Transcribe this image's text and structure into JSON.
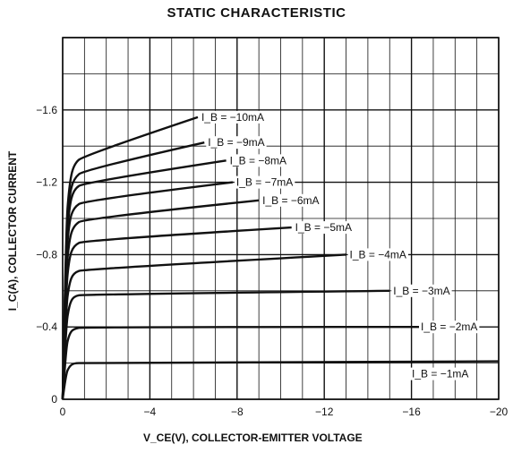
{
  "chart_data": {
    "type": "line",
    "title": "STATIC CHARACTERISTIC",
    "xlabel": "V_CE(V), COLLECTOR-EMITTER VOLTAGE",
    "ylabel": "I_C(A), COLLECTOR CURRENT",
    "xlim": [
      0,
      -20
    ],
    "ylim": [
      0,
      -2.0
    ],
    "x_ticks": [
      {
        "value": 0,
        "label": "0"
      },
      {
        "value": -4,
        "label": "−4"
      },
      {
        "value": -8,
        "label": "−8"
      },
      {
        "value": -12,
        "label": "−12"
      },
      {
        "value": -16,
        "label": "−16"
      },
      {
        "value": -20,
        "label": "−20"
      }
    ],
    "y_ticks": [
      {
        "value": 0,
        "label": "0"
      },
      {
        "value": -0.4,
        "label": "−0.4"
      },
      {
        "value": -0.8,
        "label": "−0.8"
      },
      {
        "value": -1.2,
        "label": "−1.2"
      },
      {
        "value": -1.6,
        "label": "−1.6"
      }
    ],
    "grid": true,
    "series": [
      {
        "name": "I_B = −1mA",
        "label": "I_B = −1mA",
        "x": [
          0,
          -0.15,
          -0.3,
          -0.5,
          -1,
          -20
        ],
        "y": [
          0,
          -0.14,
          -0.18,
          -0.2,
          -0.2,
          -0.21
        ]
      },
      {
        "name": "I_B = −2mA",
        "label": "I_B = −2mA",
        "x": [
          0,
          -0.15,
          -0.3,
          -0.5,
          -1,
          -16.5
        ],
        "y": [
          0,
          -0.28,
          -0.36,
          -0.39,
          -0.4,
          -0.4
        ]
      },
      {
        "name": "I_B = −3mA",
        "label": "I_B = −3mA",
        "x": [
          0,
          -0.15,
          -0.3,
          -0.5,
          -1,
          -15
        ],
        "y": [
          0,
          -0.4,
          -0.52,
          -0.57,
          -0.58,
          -0.6
        ]
      },
      {
        "name": "I_B = −4mA",
        "label": "I_B = −4mA",
        "x": [
          0,
          -0.15,
          -0.3,
          -0.5,
          -1,
          -13
        ],
        "y": [
          0,
          -0.5,
          -0.64,
          -0.7,
          -0.72,
          -0.8
        ]
      },
      {
        "name": "I_B = −5mA",
        "label": "I_B = −5mA",
        "x": [
          0,
          -0.15,
          -0.3,
          -0.5,
          -1,
          -10.5
        ],
        "y": [
          0,
          -0.6,
          -0.78,
          -0.85,
          -0.88,
          -0.95
        ]
      },
      {
        "name": "I_B = −6mA",
        "label": "I_B = −6mA",
        "x": [
          0,
          -0.15,
          -0.3,
          -0.5,
          -1,
          -9
        ],
        "y": [
          0,
          -0.68,
          -0.88,
          -0.96,
          -1.0,
          -1.1
        ]
      },
      {
        "name": "I_B = −7mA",
        "label": "I_B = −7mA",
        "x": [
          0,
          -0.15,
          -0.3,
          -0.5,
          -1,
          -7.8
        ],
        "y": [
          0,
          -0.76,
          -0.98,
          -1.06,
          -1.1,
          -1.2
        ]
      },
      {
        "name": "I_B = −8mA",
        "label": "I_B = −8mA",
        "x": [
          0,
          -0.15,
          -0.3,
          -0.5,
          -1,
          -7.5
        ],
        "y": [
          0,
          -0.82,
          -1.06,
          -1.16,
          -1.2,
          -1.32
        ]
      },
      {
        "name": "I_B = −9mA",
        "label": "I_B = −9mA",
        "x": [
          0,
          -0.15,
          -0.3,
          -0.5,
          -1,
          -6.5
        ],
        "y": [
          0,
          -0.88,
          -1.12,
          -1.22,
          -1.27,
          -1.42
        ]
      },
      {
        "name": "I_B = −10mA",
        "label": "I_B = −10mA",
        "x": [
          0,
          -0.15,
          -0.3,
          -0.5,
          -1,
          -6.2
        ],
        "y": [
          0,
          -0.94,
          -1.18,
          -1.3,
          -1.35,
          -1.56
        ]
      }
    ]
  }
}
